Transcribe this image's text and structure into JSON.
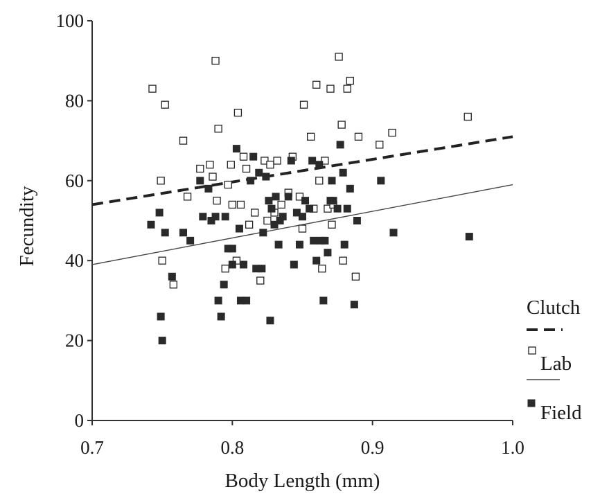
{
  "chart_data": {
    "type": "scatter",
    "title": "",
    "xlabel": "Body Length (mm)",
    "ylabel": "Fecundity",
    "xlim": [
      0.7,
      1.0
    ],
    "ylim": [
      0,
      100
    ],
    "x_ticks": [
      "0.7",
      "0.8",
      "0.9",
      "1.0"
    ],
    "y_ticks": [
      "0",
      "20",
      "40",
      "60",
      "80",
      "100"
    ],
    "grid": false,
    "legend_position": "bottom-right",
    "legend": {
      "title": "Clutch",
      "lab_label": "Lab",
      "field_label": "Field"
    },
    "colors": {
      "lab": "#222222",
      "field": "#2a2a2a",
      "axis": "#333333"
    },
    "series": [
      {
        "name": "Lab",
        "marker": "open-square",
        "line_style": "dashed",
        "trend": {
          "x": [
            0.7,
            1.0
          ],
          "y": [
            54,
            71
          ]
        },
        "points": [
          [
            0.743,
            83
          ],
          [
            0.749,
            60
          ],
          [
            0.75,
            40
          ],
          [
            0.752,
            79
          ],
          [
            0.758,
            34
          ],
          [
            0.765,
            70
          ],
          [
            0.768,
            56
          ],
          [
            0.777,
            63
          ],
          [
            0.784,
            64
          ],
          [
            0.786,
            61
          ],
          [
            0.788,
            90
          ],
          [
            0.789,
            55
          ],
          [
            0.79,
            73
          ],
          [
            0.795,
            38
          ],
          [
            0.797,
            59
          ],
          [
            0.799,
            64
          ],
          [
            0.8,
            54
          ],
          [
            0.803,
            40
          ],
          [
            0.804,
            77
          ],
          [
            0.806,
            54
          ],
          [
            0.808,
            66
          ],
          [
            0.81,
            63
          ],
          [
            0.812,
            49
          ],
          [
            0.816,
            52
          ],
          [
            0.82,
            35
          ],
          [
            0.823,
            65
          ],
          [
            0.825,
            50
          ],
          [
            0.827,
            64
          ],
          [
            0.83,
            52
          ],
          [
            0.832,
            65
          ],
          [
            0.835,
            54
          ],
          [
            0.84,
            57
          ],
          [
            0.843,
            66
          ],
          [
            0.848,
            56
          ],
          [
            0.85,
            48
          ],
          [
            0.851,
            79
          ],
          [
            0.856,
            71
          ],
          [
            0.858,
            53
          ],
          [
            0.86,
            84
          ],
          [
            0.862,
            60
          ],
          [
            0.864,
            38
          ],
          [
            0.866,
            65
          ],
          [
            0.868,
            53
          ],
          [
            0.87,
            83
          ],
          [
            0.871,
            49
          ],
          [
            0.872,
            54
          ],
          [
            0.876,
            91
          ],
          [
            0.878,
            74
          ],
          [
            0.879,
            40
          ],
          [
            0.882,
            83
          ],
          [
            0.884,
            85
          ],
          [
            0.888,
            36
          ],
          [
            0.89,
            71
          ],
          [
            0.905,
            69
          ],
          [
            0.914,
            72
          ],
          [
            0.968,
            76
          ]
        ]
      },
      {
        "name": "Field",
        "marker": "filled-square",
        "line_style": "solid",
        "trend": {
          "x": [
            0.7,
            1.0
          ],
          "y": [
            39,
            59
          ]
        },
        "points": [
          [
            0.742,
            49
          ],
          [
            0.748,
            52
          ],
          [
            0.749,
            26
          ],
          [
            0.75,
            20
          ],
          [
            0.752,
            47
          ],
          [
            0.757,
            36
          ],
          [
            0.765,
            47
          ],
          [
            0.77,
            45
          ],
          [
            0.777,
            60
          ],
          [
            0.779,
            51
          ],
          [
            0.783,
            58
          ],
          [
            0.785,
            50
          ],
          [
            0.788,
            51
          ],
          [
            0.79,
            30
          ],
          [
            0.792,
            26
          ],
          [
            0.794,
            34
          ],
          [
            0.795,
            51
          ],
          [
            0.797,
            43
          ],
          [
            0.8,
            43
          ],
          [
            0.8,
            39
          ],
          [
            0.803,
            68
          ],
          [
            0.805,
            48
          ],
          [
            0.806,
            30
          ],
          [
            0.808,
            39
          ],
          [
            0.81,
            30
          ],
          [
            0.813,
            60
          ],
          [
            0.815,
            66
          ],
          [
            0.817,
            38
          ],
          [
            0.819,
            62
          ],
          [
            0.821,
            38
          ],
          [
            0.822,
            47
          ],
          [
            0.824,
            61
          ],
          [
            0.826,
            55
          ],
          [
            0.827,
            25
          ],
          [
            0.828,
            53
          ],
          [
            0.83,
            49
          ],
          [
            0.831,
            56
          ],
          [
            0.833,
            44
          ],
          [
            0.834,
            50
          ],
          [
            0.836,
            51
          ],
          [
            0.84,
            56
          ],
          [
            0.842,
            65
          ],
          [
            0.844,
            39
          ],
          [
            0.846,
            52
          ],
          [
            0.848,
            44
          ],
          [
            0.85,
            51
          ],
          [
            0.852,
            55
          ],
          [
            0.855,
            53
          ],
          [
            0.857,
            65
          ],
          [
            0.858,
            45
          ],
          [
            0.86,
            40
          ],
          [
            0.862,
            64
          ],
          [
            0.863,
            45
          ],
          [
            0.865,
            30
          ],
          [
            0.866,
            45
          ],
          [
            0.868,
            42
          ],
          [
            0.87,
            55
          ],
          [
            0.871,
            60
          ],
          [
            0.872,
            55
          ],
          [
            0.875,
            53
          ],
          [
            0.877,
            69
          ],
          [
            0.879,
            62
          ],
          [
            0.88,
            44
          ],
          [
            0.882,
            53
          ],
          [
            0.884,
            58
          ],
          [
            0.887,
            29
          ],
          [
            0.889,
            50
          ],
          [
            0.906,
            60
          ],
          [
            0.915,
            47
          ],
          [
            0.969,
            46
          ]
        ]
      }
    ]
  }
}
